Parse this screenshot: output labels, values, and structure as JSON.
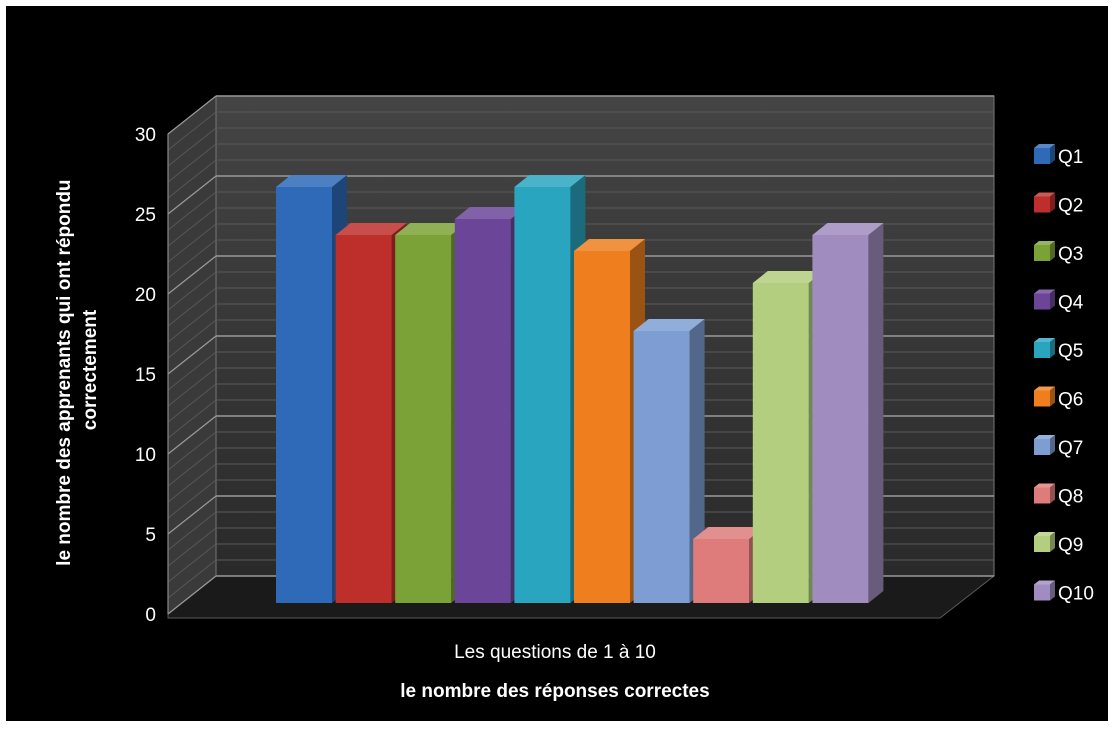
{
  "chart_data": {
    "type": "bar",
    "category": "Les questions de 1 à 10",
    "series": [
      {
        "name": "Q1",
        "value": 26,
        "color": "#2E6AB8"
      },
      {
        "name": "Q2",
        "value": 23,
        "color": "#BE2F2B"
      },
      {
        "name": "Q3",
        "value": 23,
        "color": "#7BA237"
      },
      {
        "name": "Q4",
        "value": 24,
        "color": "#6B4597"
      },
      {
        "name": "Q5",
        "value": 26,
        "color": "#2AA5C0"
      },
      {
        "name": "Q6",
        "value": 22,
        "color": "#EF7F1E"
      },
      {
        "name": "Q7",
        "value": 17,
        "color": "#7E9ED3"
      },
      {
        "name": "Q8",
        "value": 4,
        "color": "#DD7C7B"
      },
      {
        "name": "Q9",
        "value": 20,
        "color": "#B2CE7E"
      },
      {
        "name": "Q10",
        "value": 23,
        "color": "#A08CBF"
      }
    ],
    "y_ticks": [
      "0",
      "5",
      "10",
      "15",
      "20",
      "25",
      "30"
    ],
    "ylim": [
      0,
      30
    ],
    "xlabel": "le nombre des réponses correctes",
    "ylabel": "le nombre des apprenants qui ont répondu correctement",
    "ylabel_lines": [
      "le nombre des apprenants qui ont répondu",
      "correctement"
    ],
    "grid": true,
    "legend_position": "right",
    "background": "#000000"
  }
}
